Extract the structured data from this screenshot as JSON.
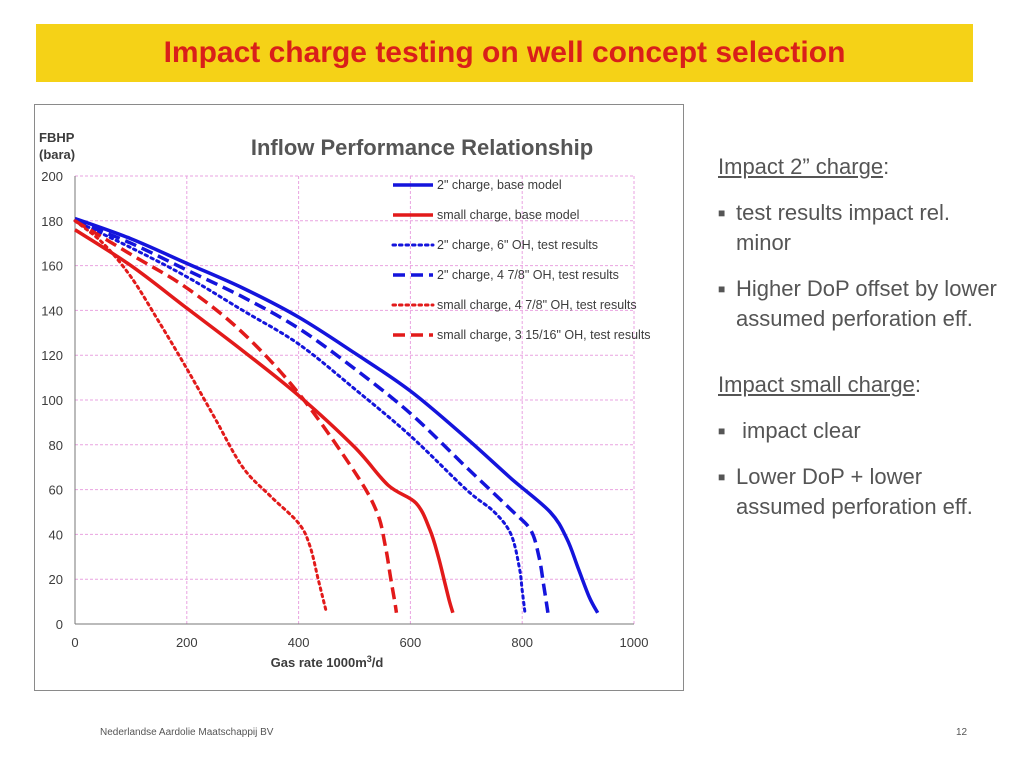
{
  "slide": {
    "title": "Impact charge testing on well concept selection",
    "title_bar_color": "#f5d217",
    "title_color": "#d91f1a"
  },
  "notes": {
    "section1": {
      "heading": "Impact 2” charge",
      "heading_suffix": ":",
      "bullets": [
        "test results impact rel. minor",
        "Higher DoP offset by lower assumed perforation eff."
      ]
    },
    "section2": {
      "heading": "Impact small charge",
      "heading_suffix": ":",
      "bullets": [
        " impact clear",
        "Lower DoP + lower assumed perforation eff."
      ]
    },
    "bullet_icon": "square-bullet-icon"
  },
  "footer": {
    "company": "Nederlandse Aardolie Maatschappij BV",
    "page": "12"
  },
  "chart_data": {
    "type": "line",
    "title": "Inflow Performance Relationship",
    "ylabel_line1": "FBHP",
    "ylabel_line2": "(bara)",
    "xlabel_main": "Gas rate 1000m",
    "xlabel_sup": "3",
    "xlabel_tail": "/d",
    "xlim": [
      0,
      1000
    ],
    "ylim": [
      0,
      200
    ],
    "xticks": [
      0,
      200,
      400,
      600,
      800,
      1000
    ],
    "yticks": [
      0,
      20,
      40,
      60,
      80,
      100,
      120,
      140,
      160,
      180,
      200
    ],
    "grid": true,
    "grid_color": "#e9a3e0",
    "legend_position": "top-right",
    "series": [
      {
        "name": "2\" charge, base model",
        "color": "#1414dc",
        "style": "solid",
        "points": [
          [
            0,
            181
          ],
          [
            100,
            172
          ],
          [
            200,
            161
          ],
          [
            300,
            150
          ],
          [
            400,
            137
          ],
          [
            500,
            121
          ],
          [
            600,
            104
          ],
          [
            700,
            83
          ],
          [
            780,
            65
          ],
          [
            850,
            50
          ],
          [
            880,
            38
          ],
          [
            900,
            25
          ],
          [
            920,
            12
          ],
          [
            935,
            5
          ]
        ]
      },
      {
        "name": "small charge, base model",
        "color": "#e21a1a",
        "style": "solid",
        "points": [
          [
            0,
            176
          ],
          [
            100,
            160
          ],
          [
            200,
            141
          ],
          [
            300,
            122
          ],
          [
            400,
            102
          ],
          [
            500,
            79
          ],
          [
            560,
            62
          ],
          [
            610,
            54
          ],
          [
            635,
            42
          ],
          [
            650,
            30
          ],
          [
            662,
            18
          ],
          [
            670,
            10
          ],
          [
            676,
            5
          ]
        ]
      },
      {
        "name": "2\" charge, 6\" OH, test results",
        "color": "#1414dc",
        "style": "dotted",
        "points": [
          [
            0,
            180
          ],
          [
            100,
            168
          ],
          [
            200,
            155
          ],
          [
            300,
            140
          ],
          [
            400,
            125
          ],
          [
            500,
            105
          ],
          [
            600,
            84
          ],
          [
            700,
            60
          ],
          [
            750,
            50
          ],
          [
            780,
            40
          ],
          [
            795,
            25
          ],
          [
            800,
            15
          ],
          [
            805,
            5
          ]
        ]
      },
      {
        "name": "2\" charge, 4 7/8\" OH, test results",
        "color": "#1414dc",
        "style": "dashed",
        "points": [
          [
            0,
            180
          ],
          [
            100,
            170
          ],
          [
            200,
            158
          ],
          [
            300,
            146
          ],
          [
            400,
            132
          ],
          [
            500,
            114
          ],
          [
            600,
            94
          ],
          [
            700,
            70
          ],
          [
            780,
            51
          ],
          [
            815,
            42
          ],
          [
            830,
            30
          ],
          [
            838,
            18
          ],
          [
            843,
            10
          ],
          [
            846,
            5
          ]
        ]
      },
      {
        "name": "small charge, 4 7/8\" OH, test results",
        "color": "#e21a1a",
        "style": "dotted",
        "points": [
          [
            0,
            180
          ],
          [
            50,
            170
          ],
          [
            100,
            155
          ],
          [
            150,
            135
          ],
          [
            200,
            114
          ],
          [
            250,
            92
          ],
          [
            300,
            70
          ],
          [
            350,
            57
          ],
          [
            400,
            45
          ],
          [
            420,
            35
          ],
          [
            435,
            20
          ],
          [
            445,
            10
          ],
          [
            450,
            5
          ]
        ]
      },
      {
        "name": "small charge, 3 15/16\" OH, test results",
        "color": "#e21a1a",
        "style": "dashed",
        "points": [
          [
            0,
            180
          ],
          [
            100,
            165
          ],
          [
            200,
            150
          ],
          [
            300,
            130
          ],
          [
            400,
            103
          ],
          [
            500,
            68
          ],
          [
            540,
            50
          ],
          [
            555,
            35
          ],
          [
            565,
            20
          ],
          [
            572,
            10
          ],
          [
            575,
            5
          ]
        ]
      }
    ]
  }
}
